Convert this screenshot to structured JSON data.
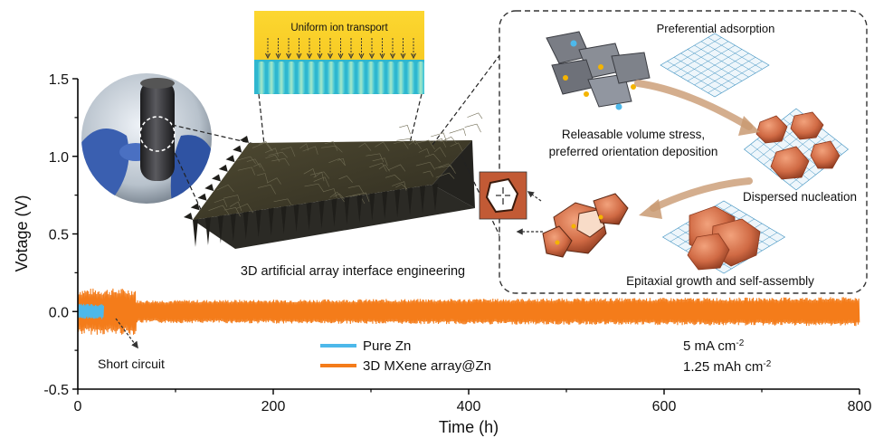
{
  "chart_data": {
    "type": "line",
    "xlabel": "Time (h)",
    "ylabel": "Votage (V)",
    "xlim": [
      0,
      800
    ],
    "ylim": [
      -0.5,
      1.5
    ],
    "x_ticks": [
      "0",
      "200",
      "400",
      "600",
      "800"
    ],
    "y_ticks": [
      "-0.5",
      "0.0",
      "0.5",
      "1.0",
      "1.5"
    ],
    "series": [
      {
        "name": "Pure Zn",
        "color": "#4db8ea",
        "x_range": [
          0,
          27
        ],
        "amplitude": [
          0.05,
          0.03
        ]
      },
      {
        "name": "3D MXene array@Zn",
        "color": "#f47c1a",
        "x_range": [
          0,
          800
        ],
        "amplitude": [
          0.15,
          0.085
        ]
      }
    ],
    "legend_position": "bottom-center",
    "grid": false,
    "conditions": {
      "current_prefix": "5 mA cm",
      "current_exp": "-2",
      "capacity_prefix": "1.25 mAh cm",
      "capacity_exp": "-2"
    },
    "annotations": {
      "short_circuit": "Short circuit",
      "uniform_ion": "Uniform ion transport",
      "interface": "3D artificial array interface engineering",
      "preferential": "Preferential adsorption",
      "stress_line1": "Releasable volume stress,",
      "stress_line2": "preferred orientation deposition",
      "nucleation": "Dispersed nucleation",
      "epitaxial": "Epitaxial growth and self-assembly"
    },
    "colors": {
      "axis": "#000000",
      "mxene_dark": "#3d3a2c",
      "zn_copper": "#c25a35",
      "ion_yellow": "#f9d11f",
      "lattice_blue": "#3a8fbf"
    }
  }
}
